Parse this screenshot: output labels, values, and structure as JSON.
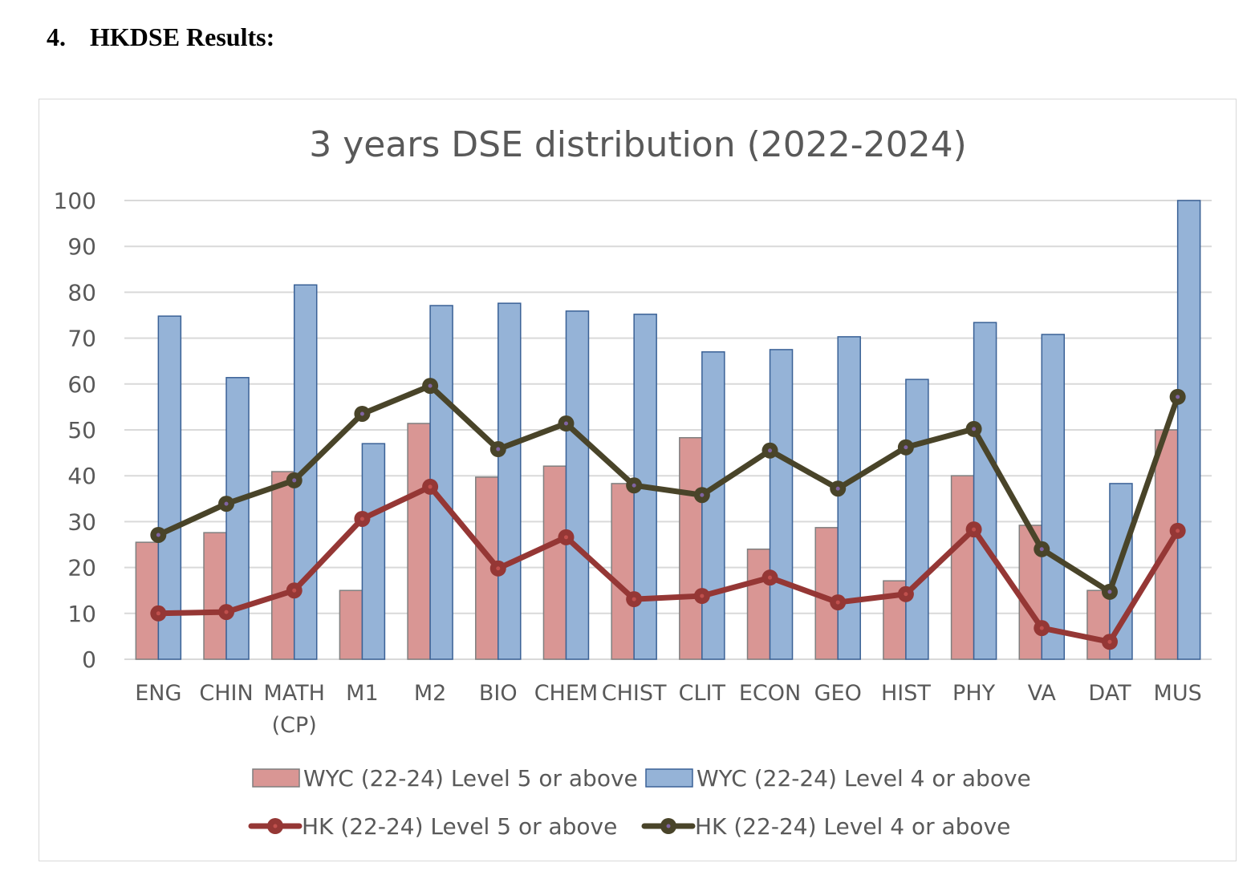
{
  "document": {
    "section_number": "4.",
    "section_title": "HKDSE Results:"
  },
  "chart_data": {
    "type": "bar",
    "title": "3 years DSE distribution (2022-2024)",
    "xlabel": "",
    "ylabel": "",
    "ylim": [
      0,
      100
    ],
    "yticks": [
      0,
      10,
      20,
      30,
      40,
      50,
      60,
      70,
      80,
      90,
      100
    ],
    "grid": true,
    "legend_position": "bottom",
    "categories": [
      "ENG",
      "CHIN",
      "MATH\n(CP)",
      "M1",
      "M2",
      "BIO",
      "CHEM",
      "CHIST",
      "CLIT",
      "ECON",
      "GEO",
      "HIST",
      "PHY",
      "VA",
      "DAT",
      "MUS"
    ],
    "series": [
      {
        "name": "WYC (22-24) Level 5 or above",
        "kind": "bar",
        "color": "#d99694",
        "border": "#7f7f7f",
        "values": [
          25.5,
          27.6,
          40.9,
          15.0,
          51.4,
          39.7,
          42.1,
          38.3,
          48.3,
          24.0,
          28.7,
          17.1,
          40.0,
          29.2,
          15.0,
          50.0
        ]
      },
      {
        "name": "WYC (22-24) Level 4 or above",
        "kind": "bar",
        "color": "#95b3d7",
        "border": "#3a6196",
        "values": [
          74.8,
          61.4,
          81.6,
          47.0,
          77.1,
          77.6,
          75.9,
          75.2,
          67.0,
          67.5,
          70.3,
          61.0,
          73.4,
          70.8,
          38.3,
          100.0
        ]
      },
      {
        "name": "HK (22-24) Level 5 or above",
        "kind": "line",
        "color": "#953735",
        "marker_center": "#c0504d",
        "values": [
          10.0,
          10.3,
          15.0,
          30.6,
          37.6,
          19.8,
          26.6,
          13.1,
          13.8,
          17.8,
          12.4,
          14.2,
          28.3,
          6.8,
          3.8,
          28.0
        ]
      },
      {
        "name": "HK (22-24) Level 4 or above",
        "kind": "line",
        "color": "#494429",
        "marker_center": "#8064a2",
        "values": [
          27.1,
          33.9,
          39.0,
          53.5,
          59.6,
          45.8,
          51.4,
          37.9,
          35.8,
          45.5,
          37.2,
          46.2,
          50.2,
          24.0,
          14.7,
          57.2
        ]
      }
    ]
  }
}
